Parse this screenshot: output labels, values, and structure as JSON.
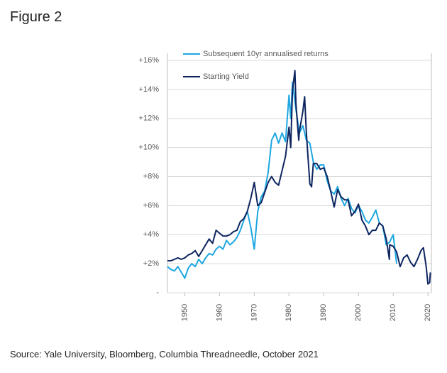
{
  "chart_data": {
    "type": "line",
    "title": "Figure 2",
    "source": "Source: Yale University, Bloomberg, Columbia Threadneedle, October 2021",
    "xlim": [
      1945,
      2021
    ],
    "xticks": [
      1950,
      1960,
      1970,
      1980,
      1990,
      2000,
      2010,
      2020
    ],
    "ylim": [
      0,
      16
    ],
    "yticks": [
      {
        "value": 0,
        "label": "-"
      },
      {
        "value": 2,
        "label": "+2%"
      },
      {
        "value": 4,
        "label": "+4%"
      },
      {
        "value": 6,
        "label": "+6%"
      },
      {
        "value": 8,
        "label": "+8%"
      },
      {
        "value": 10,
        "label": "+10%"
      },
      {
        "value": 12,
        "label": "+12%"
      },
      {
        "value": 14,
        "label": "+14%"
      },
      {
        "value": 16,
        "label": "+16%"
      }
    ],
    "grid": true,
    "legend": "top-left",
    "series": [
      {
        "name": "Subsequent 10yr annualised returns",
        "color": "#1ea7e1",
        "x": [
          1945,
          1946,
          1947,
          1948,
          1949,
          1950,
          1951,
          1952,
          1953,
          1954,
          1955,
          1956,
          1957,
          1958,
          1959,
          1960,
          1961,
          1962,
          1963,
          1964,
          1965,
          1966,
          1967,
          1968,
          1969,
          1970,
          1971,
          1972,
          1973,
          1974,
          1975,
          1976,
          1977,
          1978,
          1979,
          1980,
          1980.5,
          1981,
          1982,
          1983,
          1984,
          1985,
          1986,
          1987,
          1988,
          1989,
          1990,
          1991,
          1992,
          1993,
          1994,
          1995,
          1996,
          1997,
          1998,
          1999,
          2000,
          2001,
          2002,
          2003,
          2004,
          2005,
          2006,
          2007,
          2008,
          2009,
          2010,
          2011
        ],
        "values": [
          1.8,
          1.6,
          1.5,
          1.8,
          1.4,
          1.0,
          1.7,
          2.0,
          1.8,
          2.3,
          2.0,
          2.4,
          2.7,
          2.6,
          3.0,
          3.2,
          3.0,
          3.6,
          3.3,
          3.5,
          3.8,
          4.3,
          5.0,
          5.6,
          4.5,
          3.0,
          5.6,
          6.6,
          7.0,
          8.3,
          10.5,
          11.0,
          10.3,
          11.0,
          10.4,
          13.6,
          12.0,
          14.5,
          12.6,
          11.0,
          11.5,
          10.5,
          10.3,
          9.0,
          8.5,
          8.8,
          8.8,
          7.7,
          7.0,
          6.8,
          7.3,
          6.5,
          6.0,
          6.5,
          5.8,
          5.5,
          6.0,
          5.6,
          5.0,
          4.8,
          5.2,
          5.7,
          4.8,
          4.6,
          3.3,
          3.5,
          4.0,
          2.0
        ]
      },
      {
        "name": "Starting Yield",
        "color": "#0d2560",
        "x": [
          1945,
          1946,
          1947,
          1948,
          1949,
          1950,
          1951,
          1952,
          1953,
          1954,
          1955,
          1956,
          1957,
          1958,
          1959,
          1960,
          1961,
          1962,
          1963,
          1964,
          1965,
          1966,
          1967,
          1968,
          1969,
          1970,
          1971,
          1972,
          1973,
          1974,
          1975,
          1976,
          1977,
          1978,
          1979,
          1980,
          1980.5,
          1981,
          1981.7,
          1982,
          1982.8,
          1983,
          1984,
          1984.5,
          1985,
          1986,
          1986.5,
          1987,
          1988,
          1989,
          1990,
          1991,
          1992,
          1993,
          1994,
          1995,
          1996,
          1997,
          1998,
          1999,
          2000,
          2001,
          2002,
          2003,
          2004,
          2005,
          2006,
          2007,
          2008,
          2008.9,
          2009,
          2010,
          2011,
          2012,
          2013,
          2014,
          2015,
          2016,
          2017,
          2018,
          2018.7,
          2019.5,
          2020,
          2020.5,
          2020.7
        ],
        "values": [
          2.2,
          2.2,
          2.3,
          2.4,
          2.3,
          2.4,
          2.6,
          2.7,
          2.9,
          2.5,
          2.9,
          3.3,
          3.7,
          3.4,
          4.3,
          4.1,
          3.9,
          3.9,
          4.0,
          4.2,
          4.3,
          4.9,
          5.1,
          5.6,
          6.5,
          7.6,
          6.0,
          6.2,
          6.9,
          7.6,
          8.0,
          7.6,
          7.4,
          8.4,
          9.4,
          11.4,
          10.0,
          13.9,
          15.3,
          13.0,
          10.5,
          11.1,
          12.5,
          13.5,
          11.0,
          7.5,
          7.3,
          8.9,
          8.9,
          8.5,
          8.6,
          8.0,
          7.0,
          5.9,
          7.1,
          6.6,
          6.4,
          6.4,
          5.3,
          5.6,
          6.1,
          5.0,
          4.6,
          4.0,
          4.3,
          4.3,
          4.8,
          4.6,
          3.7,
          2.3,
          3.3,
          3.2,
          2.8,
          1.8,
          2.4,
          2.6,
          2.1,
          1.8,
          2.3,
          2.9,
          3.1,
          1.8,
          0.6,
          0.7,
          1.4
        ]
      }
    ]
  }
}
